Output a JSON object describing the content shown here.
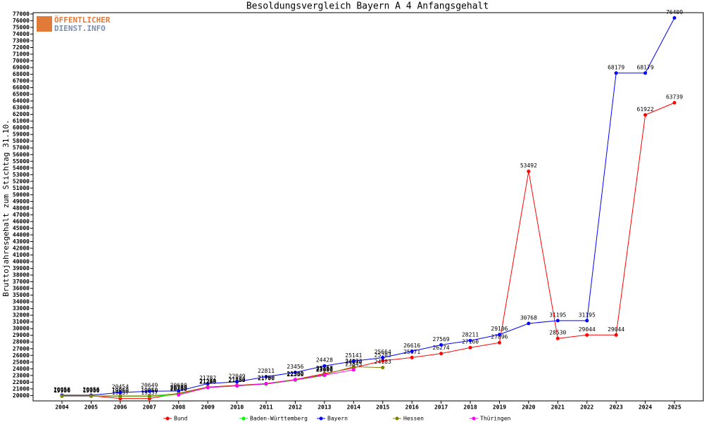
{
  "chart_data": {
    "type": "line",
    "title": "Besoldungsvergleich Bayern A 4 Anfangsgehalt",
    "watermark": [
      "ÖFFENTLICHER",
      "DIENST.INFO"
    ],
    "y_label": "Bruttojahresgehalt zum Stichtag 31.10.",
    "categories": [
      "2004",
      "2005",
      "2006",
      "2007",
      "2008",
      "2009",
      "2010",
      "2011",
      "2012",
      "2013",
      "2014",
      "2015",
      "2016",
      "2017",
      "2018",
      "2019",
      "2020",
      "2021",
      "2022",
      "2023",
      "2024",
      "2025"
    ],
    "series": [
      {
        "name": "Bund",
        "color": "#ff0000",
        "values": [
          19956,
          19956,
          19557,
          19557,
          20340,
          21278,
          21523,
          21790,
          22392,
          23267,
          24140,
          25203,
          25671,
          26274,
          27160,
          27896,
          53492,
          28530,
          29044,
          29044,
          61922,
          63739
        ]
      },
      {
        "name": "Baden-Württemberg",
        "color": "#00ff00",
        "values": [
          19900,
          19900,
          19860,
          19860,
          20150,
          21200,
          21450,
          21700,
          22300,
          23000,
          null,
          null,
          null,
          null,
          null,
          null,
          null,
          null,
          null,
          null,
          null,
          null
        ]
      },
      {
        "name": "Bayern",
        "color": "#0000ff",
        "values": [
          20056,
          20056,
          20454,
          20649,
          20680,
          21782,
          22049,
          22811,
          23456,
          24428,
          25141,
          25664,
          26616,
          27569,
          28211,
          29106,
          30768,
          31195,
          31195,
          68179,
          68179,
          76409
        ]
      },
      {
        "name": "Hessen",
        "color": "#808000",
        "values": [
          19950,
          19950,
          19950,
          19950,
          20280,
          21240,
          21480,
          21760,
          22350,
          23150,
          24293,
          24183,
          null,
          null,
          null,
          null,
          null,
          null,
          null,
          null,
          null,
          null
        ]
      },
      {
        "name": "Thüringen",
        "color": "#ff00ff",
        "values": [
          null,
          null,
          null,
          null,
          20100,
          21200,
          21450,
          21750,
          22350,
          23050,
          23843,
          null,
          null,
          null,
          null,
          null,
          null,
          null,
          null,
          null,
          null,
          null
        ]
      }
    ],
    "ylim": [
      19200,
      77200
    ],
    "yticks": [
      20000,
      21000,
      22000,
      23000,
      24000,
      25000,
      26000,
      27000,
      28000,
      29000,
      30000,
      31000,
      32000,
      33000,
      34000,
      35000,
      36000,
      37000,
      38000,
      39000,
      40000,
      41000,
      42000,
      43000,
      44000,
      45000,
      46000,
      47000,
      48000,
      49000,
      50000,
      51000,
      52000,
      53000,
      54000,
      55000,
      56000,
      57000,
      58000,
      59000,
      60000,
      61000,
      62000,
      63000,
      64000,
      65000,
      66000,
      67000,
      68000,
      69000,
      70000,
      71000,
      72000,
      73000,
      74000,
      75000,
      76000,
      77000
    ]
  }
}
